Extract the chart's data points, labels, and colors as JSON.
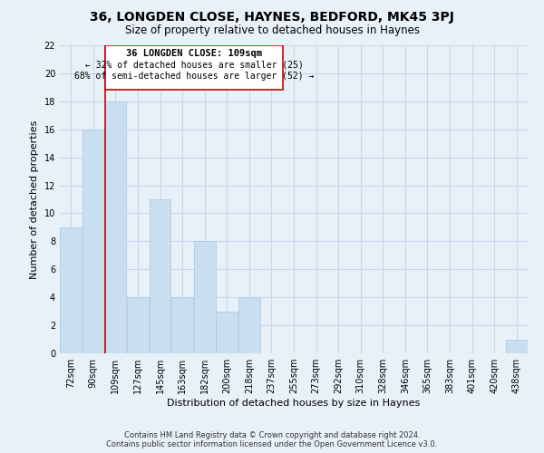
{
  "title": "36, LONGDEN CLOSE, HAYNES, BEDFORD, MK45 3PJ",
  "subtitle": "Size of property relative to detached houses in Haynes",
  "xlabel": "Distribution of detached houses by size in Haynes",
  "ylabel": "Number of detached properties",
  "categories": [
    "72sqm",
    "90sqm",
    "109sqm",
    "127sqm",
    "145sqm",
    "163sqm",
    "182sqm",
    "200sqm",
    "218sqm",
    "237sqm",
    "255sqm",
    "273sqm",
    "292sqm",
    "310sqm",
    "328sqm",
    "346sqm",
    "365sqm",
    "383sqm",
    "401sqm",
    "420sqm",
    "438sqm"
  ],
  "values": [
    9,
    16,
    18,
    4,
    11,
    4,
    8,
    3,
    4,
    0,
    0,
    0,
    0,
    0,
    0,
    0,
    0,
    0,
    0,
    0,
    1
  ],
  "bar_color": "#c8dff0",
  "bar_edge_color": "#a8c8e8",
  "highlight_index": 2,
  "highlight_color": "#cc0000",
  "ylim": [
    0,
    22
  ],
  "yticks": [
    0,
    2,
    4,
    6,
    8,
    10,
    12,
    14,
    16,
    18,
    20,
    22
  ],
  "annotation_lines": [
    "36 LONGDEN CLOSE: 109sqm",
    "← 32% of detached houses are smaller (25)",
    "68% of semi-detached houses are larger (52) →"
  ],
  "footer_line1": "Contains HM Land Registry data © Crown copyright and database right 2024.",
  "footer_line2": "Contains public sector information licensed under the Open Government Licence v3.0.",
  "background_color": "#e8f0f8",
  "grid_color": "#c8d8ec",
  "title_fontsize": 10,
  "subtitle_fontsize": 8.5,
  "xlabel_fontsize": 8,
  "ylabel_fontsize": 8,
  "tick_fontsize": 7,
  "footer_fontsize": 6
}
